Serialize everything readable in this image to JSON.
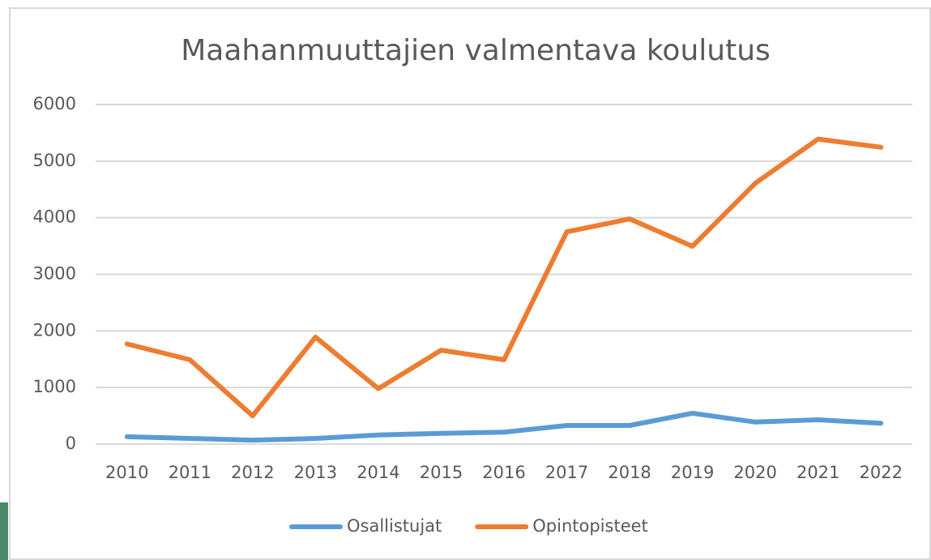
{
  "chart_data": {
    "type": "line",
    "title": "Maahanmuuttajien valmentava koulutus",
    "categories": [
      "2010",
      "2011",
      "2012",
      "2013",
      "2014",
      "2015",
      "2016",
      "2017",
      "2018",
      "2019",
      "2020",
      "2021",
      "2022"
    ],
    "series": [
      {
        "name": "Osallistujat",
        "color": "#5b9bd5",
        "values": [
          130,
          100,
          70,
          100,
          160,
          190,
          210,
          330,
          330,
          545,
          390,
          430,
          370
        ]
      },
      {
        "name": "Opintopisteet",
        "color": "#ed7d31",
        "values": [
          1770,
          1490,
          500,
          1890,
          980,
          1660,
          1490,
          3750,
          3980,
          3495,
          4610,
          5390,
          5245
        ]
      }
    ],
    "ylim": [
      0,
      6000
    ],
    "yticks": [
      0,
      1000,
      2000,
      3000,
      4000,
      5000,
      6000
    ],
    "grid": true,
    "legend": "bottom"
  }
}
